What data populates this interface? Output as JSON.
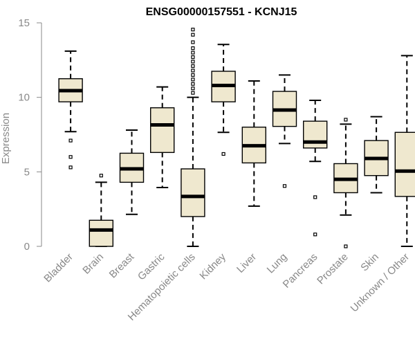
{
  "chart_data": {
    "type": "boxplot",
    "title": "ENSG00000157551 - KCNJ15",
    "xlabel": "",
    "ylabel": "Expression",
    "ylim": [
      0,
      15
    ],
    "yticks": [
      0,
      5,
      10,
      15
    ],
    "box_color": "#efe8cf",
    "categories": [
      "Bladder",
      "Brain",
      "Breast",
      "Gastric",
      "Hematopoietic cells",
      "Kidney",
      "Liver",
      "Lung",
      "Pancreas",
      "Prostate",
      "Skin",
      "Unknown / Other"
    ],
    "boxes": [
      {
        "name": "Bladder",
        "whisker_low": 7.7,
        "q1": 9.7,
        "median": 10.45,
        "q3": 11.25,
        "whisker_high": 13.1,
        "outliers": [
          7.1,
          6.0,
          5.3
        ]
      },
      {
        "name": "Brain",
        "whisker_low": 0.0,
        "q1": 0.0,
        "median": 1.1,
        "q3": 1.75,
        "whisker_high": 4.3,
        "outliers": [
          4.75
        ]
      },
      {
        "name": "Breast",
        "whisker_low": 2.15,
        "q1": 4.3,
        "median": 5.2,
        "q3": 6.25,
        "whisker_high": 7.8,
        "outliers": []
      },
      {
        "name": "Gastric",
        "whisker_low": 3.95,
        "q1": 6.3,
        "median": 8.15,
        "q3": 9.3,
        "whisker_high": 10.7,
        "outliers": []
      },
      {
        "name": "Hematopoietic cells",
        "whisker_low": 0.0,
        "q1": 2.0,
        "median": 3.35,
        "q3": 5.2,
        "whisker_high": 10.0,
        "outliers": [
          10.3,
          10.6,
          10.9,
          11.2,
          11.5,
          11.8,
          12.1,
          12.4,
          12.7,
          13.0,
          13.3,
          13.7,
          14.2,
          14.55
        ]
      },
      {
        "name": "Kidney",
        "whisker_low": 7.65,
        "q1": 9.7,
        "median": 10.8,
        "q3": 11.75,
        "whisker_high": 13.55,
        "outliers": [
          6.2
        ]
      },
      {
        "name": "Liver",
        "whisker_low": 2.7,
        "q1": 5.6,
        "median": 6.75,
        "q3": 8.0,
        "whisker_high": 11.1,
        "outliers": []
      },
      {
        "name": "Lung",
        "whisker_low": 6.9,
        "q1": 8.05,
        "median": 9.15,
        "q3": 10.4,
        "whisker_high": 11.5,
        "outliers": [
          4.05
        ]
      },
      {
        "name": "Pancreas",
        "whisker_low": 5.7,
        "q1": 6.6,
        "median": 7.0,
        "q3": 8.4,
        "whisker_high": 9.8,
        "outliers": [
          3.3,
          0.8
        ]
      },
      {
        "name": "Prostate",
        "whisker_low": 2.1,
        "q1": 3.6,
        "median": 4.5,
        "q3": 5.55,
        "whisker_high": 8.2,
        "outliers": [
          8.5,
          0.0
        ]
      },
      {
        "name": "Skin",
        "whisker_low": 3.6,
        "q1": 4.75,
        "median": 5.9,
        "q3": 7.1,
        "whisker_high": 8.7,
        "outliers": []
      },
      {
        "name": "Unknown / Other",
        "whisker_low": 0.0,
        "q1": 3.35,
        "median": 5.05,
        "q3": 7.65,
        "whisker_high": 12.8,
        "outliers": []
      }
    ]
  }
}
